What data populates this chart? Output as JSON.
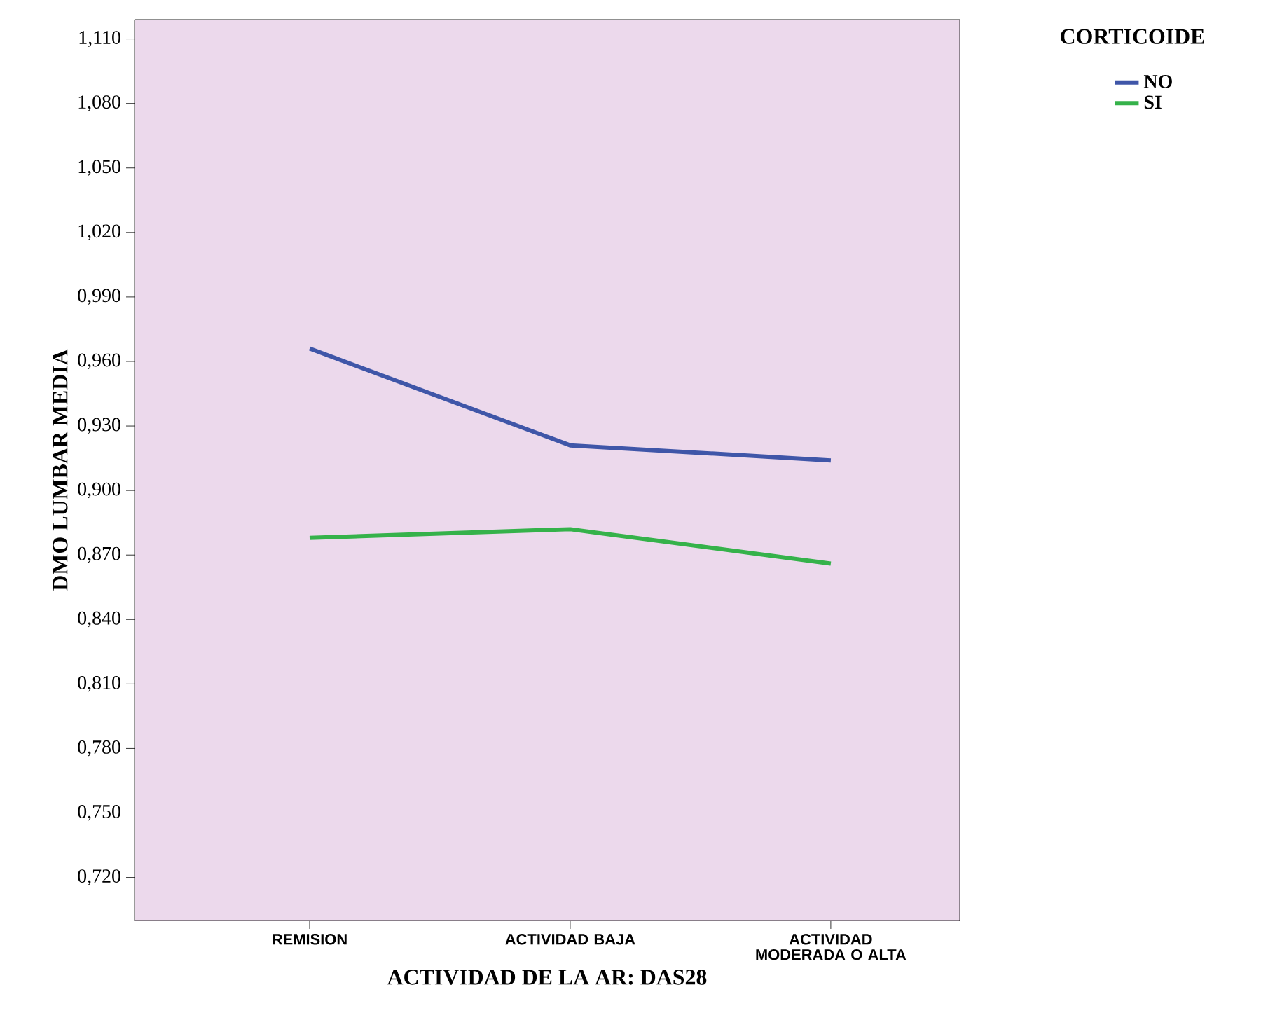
{
  "chart_data": {
    "type": "line",
    "xlabel": "ACTIVIDAD DE LA AR: DAS28",
    "ylabel": "DMO LUMBAR MEDIA",
    "legend_title": "CORTICOIDE",
    "legend": "right",
    "categories": [
      "REMISION",
      "ACTIVIDAD BAJA",
      "ACTIVIDAD MODERADA O ALTA"
    ],
    "series": [
      {
        "name": "NO",
        "color": "#3f56a8",
        "values": [
          0.966,
          0.921,
          0.914
        ]
      },
      {
        "name": "SI",
        "color": "#35b24a",
        "values": [
          0.878,
          0.882,
          0.866
        ]
      }
    ],
    "ylim": [
      0.7,
      1.119
    ],
    "yticks": [
      {
        "value": 0.72,
        "label": "0,720"
      },
      {
        "value": 0.75,
        "label": "0,750"
      },
      {
        "value": 0.78,
        "label": "0,780"
      },
      {
        "value": 0.81,
        "label": "0,810"
      },
      {
        "value": 0.84,
        "label": "0,840"
      },
      {
        "value": 0.87,
        "label": "0,870"
      },
      {
        "value": 0.9,
        "label": "0,900"
      },
      {
        "value": 0.93,
        "label": "0,930"
      },
      {
        "value": 0.96,
        "label": "0,960"
      },
      {
        "value": 0.99,
        "label": "0,990"
      },
      {
        "value": 1.02,
        "label": "1,020"
      },
      {
        "value": 1.05,
        "label": "1,050"
      },
      {
        "value": 1.08,
        "label": "1,080"
      },
      {
        "value": 1.11,
        "label": "1,110"
      }
    ],
    "grid": false,
    "marker": "none",
    "line_style": "solid"
  }
}
